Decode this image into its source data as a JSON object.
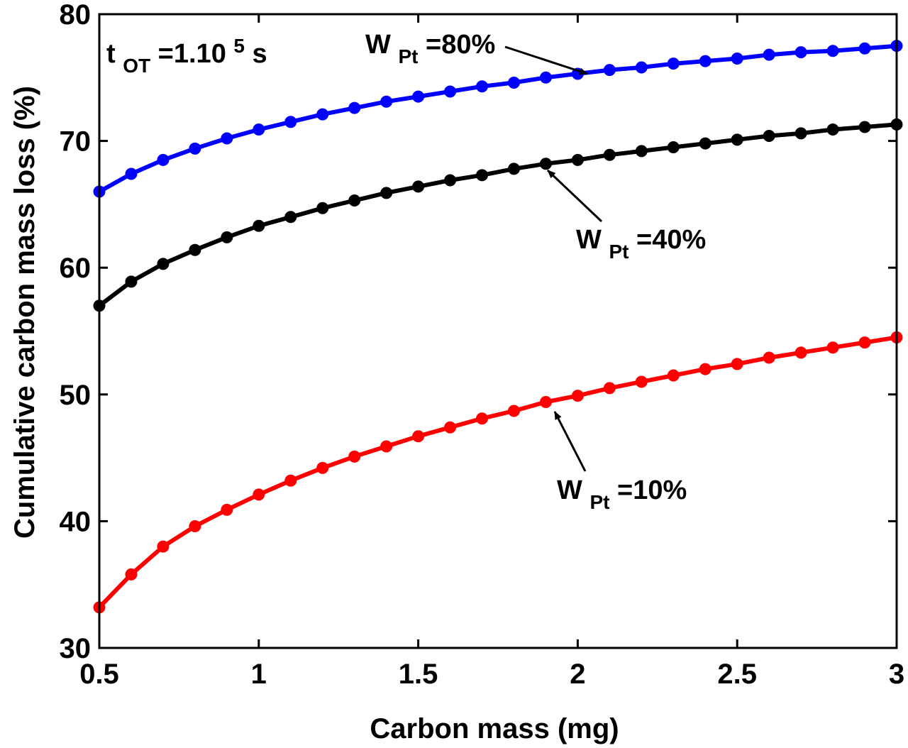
{
  "chart_data": {
    "type": "line",
    "title": "",
    "xlabel": "Carbon mass (mg)",
    "ylabel": "Cumulative carbon mass loss (%)",
    "xlim": [
      0.5,
      3
    ],
    "ylim": [
      30,
      80
    ],
    "xticks": [
      0.5,
      1,
      1.5,
      2,
      2.5,
      3
    ],
    "xtick_labels": [
      "0.5",
      "1",
      "1.5",
      "2",
      "2.5",
      "3"
    ],
    "yticks": [
      30,
      40,
      50,
      60,
      70,
      80
    ],
    "ytick_labels": [
      "30",
      "40",
      "50",
      "60",
      "70",
      "80"
    ],
    "grid": false,
    "x": [
      0.5,
      0.6,
      0.7,
      0.8,
      0.9,
      1.0,
      1.1,
      1.2,
      1.3,
      1.4,
      1.5,
      1.6,
      1.7,
      1.8,
      1.9,
      2.0,
      2.1,
      2.2,
      2.3,
      2.4,
      2.5,
      2.6,
      2.7,
      2.8,
      2.9,
      3.0
    ],
    "series": [
      {
        "name": "W_Pt=80%",
        "color": "#0000ff",
        "values": [
          66.0,
          67.4,
          68.5,
          69.4,
          70.2,
          70.9,
          71.5,
          72.1,
          72.6,
          73.1,
          73.5,
          73.9,
          74.3,
          74.6,
          75.0,
          75.3,
          75.6,
          75.8,
          76.1,
          76.3,
          76.5,
          76.8,
          77.0,
          77.1,
          77.3,
          77.5
        ]
      },
      {
        "name": "W_Pt=40%",
        "color": "#000000",
        "values": [
          57.0,
          58.9,
          60.3,
          61.4,
          62.4,
          63.3,
          64.0,
          64.7,
          65.3,
          65.9,
          66.4,
          66.9,
          67.3,
          67.8,
          68.2,
          68.5,
          68.9,
          69.2,
          69.5,
          69.8,
          70.1,
          70.4,
          70.6,
          70.9,
          71.1,
          71.3
        ]
      },
      {
        "name": "W_Pt=10%",
        "color": "#ff0000",
        "values": [
          33.2,
          35.8,
          38.0,
          39.6,
          40.9,
          42.1,
          43.2,
          44.2,
          45.1,
          45.9,
          46.7,
          47.4,
          48.1,
          48.7,
          49.4,
          49.9,
          50.5,
          51.0,
          51.5,
          52.0,
          52.4,
          52.9,
          53.3,
          53.7,
          54.1,
          54.5
        ]
      }
    ],
    "annotations": [
      {
        "id": "t",
        "base": "t",
        "sub": "OT",
        "mid": "=1.10",
        "sup": "5",
        "tail": " s"
      },
      {
        "id": "w80",
        "base": "W",
        "sub": "Pt",
        "tail": "=80%",
        "target_x": 2.0,
        "target_y": 75.3
      },
      {
        "id": "w40",
        "base": "W",
        "sub": "Pt",
        "tail": "=40%",
        "target_x": 1.9,
        "target_y": 68.2
      },
      {
        "id": "w10",
        "base": "W",
        "sub": "Pt",
        "tail": "=10%",
        "target_x": 1.9,
        "target_y": 49.4
      }
    ]
  }
}
